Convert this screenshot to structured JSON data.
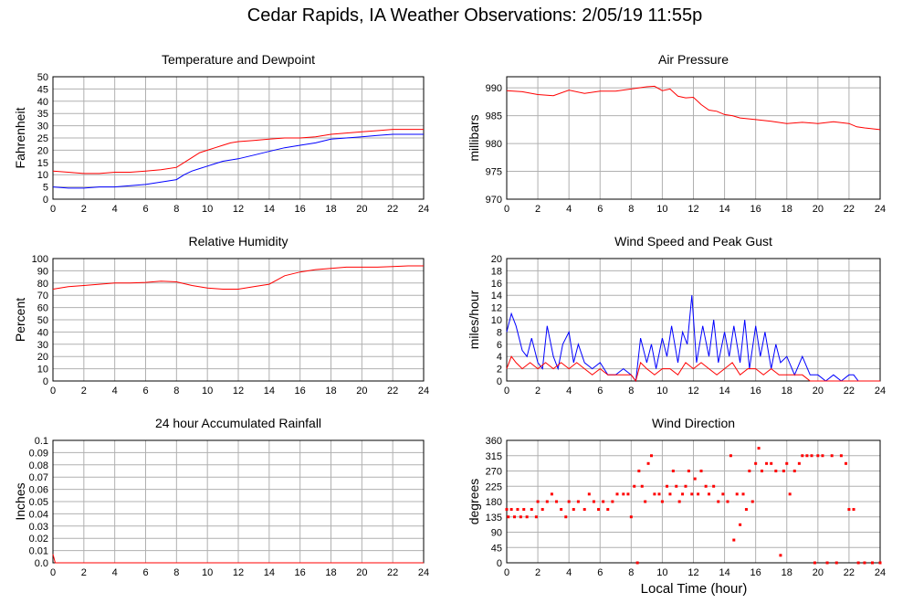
{
  "title": "Cedar Rapids, IA Weather Observations: 2/05/19 11:55p",
  "xlabel": "Local Time (hour)",
  "colors": {
    "red": "#ff0000",
    "blue": "#0000ff",
    "grid": "#b0b0b0"
  },
  "chart_data": [
    {
      "id": "temp",
      "type": "line",
      "title": "Temperature and Dewpoint",
      "ylabel": "Fahrenheit",
      "xlim": [
        0,
        24
      ],
      "ylim": [
        0,
        50
      ],
      "xticks": [
        0,
        2,
        4,
        6,
        8,
        10,
        12,
        14,
        16,
        18,
        20,
        22,
        24
      ],
      "yticks": [
        0,
        5,
        10,
        15,
        20,
        25,
        30,
        35,
        40,
        45,
        50
      ],
      "series": [
        {
          "color": "#ff0000",
          "x": [
            0,
            1,
            2,
            3,
            4,
            5,
            6,
            7,
            8,
            8.5,
            9,
            9.5,
            10,
            10.5,
            11,
            11.5,
            12,
            13,
            14,
            15,
            16,
            17,
            18,
            19,
            20,
            21,
            22,
            23,
            24
          ],
          "y": [
            11.5,
            11,
            10.5,
            10.5,
            11,
            11,
            11.5,
            12,
            13,
            15,
            17,
            19,
            20,
            21,
            22,
            23,
            23.5,
            24,
            24.5,
            25,
            25,
            25.5,
            26.5,
            27,
            27.5,
            28,
            28.5,
            28.5,
            28.5
          ]
        },
        {
          "color": "#0000ff",
          "x": [
            0,
            1,
            2,
            3,
            4,
            5,
            6,
            7,
            8,
            8.5,
            9,
            9.5,
            10,
            10.5,
            11,
            11.5,
            12,
            13,
            14,
            15,
            16,
            17,
            18,
            19,
            20,
            21,
            22,
            23,
            24
          ],
          "y": [
            5,
            4.5,
            4.5,
            5,
            5,
            5.5,
            6,
            7,
            8,
            10,
            11.5,
            12.5,
            13.5,
            14.5,
            15.5,
            16,
            16.5,
            18,
            19.5,
            21,
            22,
            23,
            24.5,
            25,
            25.5,
            26,
            26.5,
            26.5,
            26.5
          ]
        }
      ]
    },
    {
      "id": "press",
      "type": "line",
      "title": "Air Pressure",
      "ylabel": "millibars",
      "xlim": [
        0,
        24
      ],
      "ylim": [
        970,
        992
      ],
      "xticks": [
        0,
        2,
        4,
        6,
        8,
        10,
        12,
        14,
        16,
        18,
        20,
        22,
        24
      ],
      "yticks": [
        970,
        975,
        980,
        985,
        990
      ],
      "series": [
        {
          "color": "#ff0000",
          "x": [
            0,
            1,
            2,
            3,
            4,
            5,
            6,
            7,
            8,
            9,
            9.5,
            10,
            10.5,
            11,
            11.5,
            12,
            12.5,
            13,
            13.5,
            14,
            14.5,
            15,
            16,
            17,
            18,
            19,
            20,
            21,
            22,
            22.5,
            23,
            24
          ],
          "y": [
            989.5,
            989.3,
            988.8,
            988.6,
            989.6,
            989.0,
            989.4,
            989.4,
            989.8,
            990.2,
            990.3,
            989.5,
            989.8,
            988.5,
            988.2,
            988.3,
            987.0,
            986.0,
            985.8,
            985.2,
            985.0,
            984.6,
            984.3,
            984.0,
            983.6,
            983.8,
            983.6,
            983.9,
            983.6,
            983.0,
            982.8,
            982.5
          ]
        }
      ]
    },
    {
      "id": "rh",
      "type": "line",
      "title": "Relative Humidity",
      "ylabel": "Percent",
      "xlim": [
        0,
        24
      ],
      "ylim": [
        0,
        100
      ],
      "xticks": [
        0,
        2,
        4,
        6,
        8,
        10,
        12,
        14,
        16,
        18,
        20,
        22,
        24
      ],
      "yticks": [
        0,
        10,
        20,
        30,
        40,
        50,
        60,
        70,
        80,
        90,
        100
      ],
      "series": [
        {
          "color": "#ff0000",
          "x": [
            0,
            1,
            2,
            3,
            4,
            5,
            6,
            7,
            8,
            9,
            10,
            11,
            12,
            13,
            14,
            15,
            16,
            17,
            18,
            19,
            20,
            21,
            22,
            23,
            24
          ],
          "y": [
            75,
            77,
            78,
            79,
            80,
            80,
            80.5,
            81.5,
            81,
            78,
            76,
            75,
            75,
            77,
            79,
            86,
            89,
            91,
            92,
            93,
            93,
            93,
            93.5,
            94,
            94
          ]
        }
      ]
    },
    {
      "id": "wind",
      "type": "line",
      "title": "Wind Speed and Peak Gust",
      "ylabel": "miles/hour",
      "xlim": [
        0,
        24
      ],
      "ylim": [
        0,
        20
      ],
      "xticks": [
        0,
        2,
        4,
        6,
        8,
        10,
        12,
        14,
        16,
        18,
        20,
        22,
        24
      ],
      "yticks": [
        0,
        2,
        4,
        6,
        8,
        10,
        12,
        14,
        16,
        18,
        20
      ],
      "series": [
        {
          "color": "#0000ff",
          "x": [
            0,
            0.3,
            0.6,
            1,
            1.3,
            1.6,
            2,
            2.3,
            2.6,
            3,
            3.3,
            3.6,
            4,
            4.3,
            4.6,
            5,
            5.5,
            6,
            6.5,
            7,
            7.5,
            8,
            8.3,
            8.6,
            9,
            9.3,
            9.6,
            10,
            10.3,
            10.6,
            11,
            11.3,
            11.6,
            11.9,
            12.2,
            12.6,
            13,
            13.3,
            13.6,
            14,
            14.3,
            14.6,
            15,
            15.3,
            15.6,
            16,
            16.3,
            16.6,
            17,
            17.3,
            17.6,
            18,
            18.5,
            19,
            19.5,
            20,
            20.5,
            21,
            21.5,
            22,
            22.3,
            22.6,
            23,
            24
          ],
          "y": [
            8,
            11,
            9,
            5,
            4,
            7,
            3,
            2,
            9,
            4,
            2,
            6,
            8,
            3,
            6,
            3,
            2,
            3,
            1,
            1,
            2,
            1,
            0,
            7,
            3,
            6,
            2,
            7,
            4,
            9,
            3,
            8,
            6,
            14,
            3,
            9,
            4,
            10,
            3,
            8,
            4,
            9,
            3,
            10,
            2,
            9,
            4,
            8,
            2,
            6,
            3,
            4,
            1,
            4,
            1,
            1,
            0,
            1,
            0,
            1,
            1,
            0,
            0,
            0
          ]
        },
        {
          "color": "#ff0000",
          "x": [
            0,
            0.3,
            0.6,
            1,
            1.5,
            2,
            2.5,
            3,
            3.5,
            4,
            4.5,
            5,
            5.5,
            6,
            6.5,
            7,
            7.5,
            8,
            8.3,
            8.6,
            9,
            9.5,
            10,
            10.5,
            11,
            11.5,
            12,
            12.5,
            13,
            13.5,
            14,
            14.5,
            15,
            15.5,
            16,
            16.5,
            17,
            17.5,
            18,
            18.5,
            19,
            19.5,
            20,
            21,
            22,
            23,
            24
          ],
          "y": [
            2,
            4,
            3,
            2,
            3,
            2,
            3,
            2,
            3,
            2,
            3,
            2,
            1,
            2,
            1,
            1,
            1,
            1,
            0,
            3,
            2,
            1,
            2,
            2,
            1,
            3,
            2,
            3,
            2,
            1,
            2,
            3,
            1,
            2,
            2,
            1,
            2,
            1,
            1,
            1,
            1,
            0,
            0,
            0,
            0,
            0,
            0
          ]
        }
      ]
    },
    {
      "id": "rain",
      "type": "line",
      "title": "24 hour Accumulated Rainfall",
      "ylabel": "Inches",
      "xlim": [
        0,
        24
      ],
      "ylim": [
        0,
        0.1
      ],
      "xticks": [
        0,
        2,
        4,
        6,
        8,
        10,
        12,
        14,
        16,
        18,
        20,
        22,
        24
      ],
      "yticks": [
        0,
        0.01,
        0.02,
        0.03,
        0.04,
        0.05,
        0.06,
        0.07,
        0.08,
        0.09,
        0.1
      ],
      "ytick_labels": [
        "0.0",
        "0.01",
        "0.02",
        "0.03",
        "0.04",
        "0.05",
        "0.06",
        "0.07",
        "0.08",
        "0.09",
        "0.1"
      ],
      "series": [
        {
          "color": "#ff0000",
          "x": [
            0,
            0.15,
            24
          ],
          "y": [
            0.007,
            0,
            0
          ]
        }
      ]
    },
    {
      "id": "wdir",
      "type": "scatter",
      "title": "Wind Direction",
      "ylabel": "degrees",
      "xlim": [
        0,
        24
      ],
      "ylim": [
        0,
        360
      ],
      "xticks": [
        0,
        2,
        4,
        6,
        8,
        10,
        12,
        14,
        16,
        18,
        20,
        22,
        24
      ],
      "yticks": [
        0,
        45,
        90,
        135,
        180,
        225,
        270,
        315,
        360
      ],
      "series": [
        {
          "color": "#ff0000",
          "points": [
            [
              0,
              157
            ],
            [
              0.1,
              135
            ],
            [
              0.3,
              157
            ],
            [
              0.5,
              135
            ],
            [
              0.7,
              157
            ],
            [
              0.9,
              135
            ],
            [
              1.1,
              157
            ],
            [
              1.3,
              135
            ],
            [
              1.6,
              157
            ],
            [
              1.9,
              135
            ],
            [
              2,
              180
            ],
            [
              2.3,
              157
            ],
            [
              2.6,
              180
            ],
            [
              2.9,
              202
            ],
            [
              3.2,
              180
            ],
            [
              3.5,
              157
            ],
            [
              3.8,
              135
            ],
            [
              4,
              180
            ],
            [
              4.3,
              157
            ],
            [
              4.6,
              180
            ],
            [
              5,
              157
            ],
            [
              5.3,
              202
            ],
            [
              5.6,
              180
            ],
            [
              5.9,
              157
            ],
            [
              6.2,
              180
            ],
            [
              6.5,
              157
            ],
            [
              6.8,
              180
            ],
            [
              7.1,
              202
            ],
            [
              7.5,
              202
            ],
            [
              7.8,
              202
            ],
            [
              8,
              135
            ],
            [
              8.2,
              225
            ],
            [
              8.4,
              0
            ],
            [
              8.5,
              270
            ],
            [
              8.7,
              225
            ],
            [
              8.9,
              180
            ],
            [
              9.1,
              292
            ],
            [
              9.3,
              315
            ],
            [
              9.5,
              202
            ],
            [
              9.8,
              202
            ],
            [
              10,
              180
            ],
            [
              10.3,
              225
            ],
            [
              10.5,
              202
            ],
            [
              10.7,
              270
            ],
            [
              10.9,
              225
            ],
            [
              11.1,
              180
            ],
            [
              11.3,
              202
            ],
            [
              11.5,
              225
            ],
            [
              11.7,
              270
            ],
            [
              11.9,
              202
            ],
            [
              12.1,
              247
            ],
            [
              12.3,
              202
            ],
            [
              12.5,
              270
            ],
            [
              12.8,
              225
            ],
            [
              13,
              202
            ],
            [
              13.3,
              225
            ],
            [
              13.6,
              180
            ],
            [
              13.9,
              202
            ],
            [
              14.2,
              180
            ],
            [
              14.4,
              315
            ],
            [
              14.6,
              67
            ],
            [
              14.8,
              202
            ],
            [
              15,
              112
            ],
            [
              15.2,
              202
            ],
            [
              15.4,
              157
            ],
            [
              15.6,
              270
            ],
            [
              15.8,
              180
            ],
            [
              16,
              292
            ],
            [
              16.2,
              337
            ],
            [
              16.4,
              270
            ],
            [
              16.7,
              292
            ],
            [
              17,
              292
            ],
            [
              17.3,
              270
            ],
            [
              17.6,
              22
            ],
            [
              17.8,
              270
            ],
            [
              18,
              292
            ],
            [
              18.2,
              202
            ],
            [
              18.5,
              270
            ],
            [
              18.8,
              292
            ],
            [
              19,
              315
            ],
            [
              19.3,
              315
            ],
            [
              19.6,
              315
            ],
            [
              19.8,
              0
            ],
            [
              20,
              315
            ],
            [
              20.3,
              315
            ],
            [
              20.6,
              0
            ],
            [
              20.9,
              315
            ],
            [
              21.2,
              0
            ],
            [
              21.5,
              315
            ],
            [
              21.8,
              292
            ],
            [
              22,
              157
            ],
            [
              22.3,
              157
            ],
            [
              22.6,
              0
            ],
            [
              23,
              0
            ],
            [
              23.5,
              0
            ],
            [
              24,
              0
            ]
          ]
        }
      ]
    }
  ]
}
